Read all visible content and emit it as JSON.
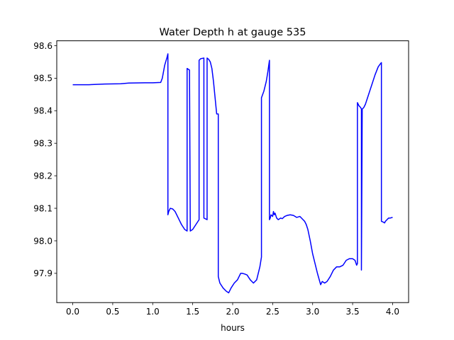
{
  "chart_data": {
    "type": "line",
    "title": "Water Depth h at gauge 535",
    "xlabel": "hours",
    "ylabel": "",
    "xlim": [
      -0.2,
      4.2
    ],
    "ylim": [
      97.81,
      98.615
    ],
    "xticks": [
      0.0,
      0.5,
      1.0,
      1.5,
      2.0,
      2.5,
      3.0,
      3.5,
      4.0
    ],
    "xtick_labels": [
      "0.0",
      "0.5",
      "1.0",
      "1.5",
      "2.0",
      "2.5",
      "3.0",
      "3.5",
      "4.0"
    ],
    "yticks": [
      97.9,
      98.0,
      98.1,
      98.2,
      98.3,
      98.4,
      98.5,
      98.6
    ],
    "ytick_labels": [
      "97.9",
      "98.0",
      "98.1",
      "98.2",
      "98.3",
      "98.4",
      "98.5",
      "98.6"
    ],
    "grid": false,
    "series": [
      {
        "color": "#0000ff",
        "x": [
          0.0,
          0.2,
          0.4,
          0.6,
          0.7,
          0.9,
          1.0,
          1.1,
          1.12,
          1.15,
          1.18,
          1.19,
          1.19,
          1.2,
          1.22,
          1.25,
          1.28,
          1.32,
          1.36,
          1.4,
          1.43,
          1.43,
          1.46,
          1.46,
          1.47,
          1.5,
          1.54,
          1.58,
          1.58,
          1.6,
          1.64,
          1.64,
          1.68,
          1.68,
          1.7,
          1.72,
          1.74,
          1.76,
          1.78,
          1.8,
          1.82,
          1.82,
          1.84,
          1.88,
          1.92,
          1.95,
          1.98,
          2.02,
          2.06,
          2.1,
          2.12,
          2.15,
          2.18,
          2.22,
          2.26,
          2.3,
          2.34,
          2.36,
          2.36,
          2.39,
          2.42,
          2.44,
          2.46,
          2.46,
          2.47,
          2.48,
          2.5,
          2.51,
          2.52,
          2.53,
          2.55,
          2.57,
          2.6,
          2.62,
          2.65,
          2.68,
          2.72,
          2.76,
          2.8,
          2.84,
          2.88,
          2.9,
          2.92,
          2.94,
          2.97,
          3.0,
          3.03,
          3.06,
          3.1,
          3.12,
          3.15,
          3.18,
          3.22,
          3.26,
          3.3,
          3.34,
          3.38,
          3.42,
          3.46,
          3.5,
          3.53,
          3.55,
          3.56,
          3.56,
          3.58,
          3.6,
          3.61,
          3.61,
          3.62,
          3.64,
          3.66,
          3.7,
          3.74,
          3.78,
          3.82,
          3.85,
          3.86,
          3.86,
          3.88,
          3.9,
          3.91,
          3.93,
          3.95,
          3.97,
          4.0
        ],
        "y": [
          98.48,
          98.48,
          98.482,
          98.483,
          98.485,
          98.486,
          98.486,
          98.487,
          98.5,
          98.54,
          98.565,
          98.575,
          98.08,
          98.09,
          98.1,
          98.098,
          98.09,
          98.07,
          98.05,
          98.035,
          98.03,
          98.53,
          98.525,
          98.525,
          98.03,
          98.035,
          98.05,
          98.065,
          98.555,
          98.56,
          98.562,
          98.07,
          98.065,
          98.562,
          98.558,
          98.55,
          98.53,
          98.49,
          98.44,
          98.39,
          98.39,
          97.89,
          97.87,
          97.855,
          97.845,
          97.84,
          97.855,
          97.87,
          97.88,
          97.9,
          97.9,
          97.898,
          97.895,
          97.88,
          97.87,
          97.88,
          97.92,
          97.95,
          98.44,
          98.46,
          98.49,
          98.52,
          98.555,
          98.065,
          98.07,
          98.08,
          98.075,
          98.09,
          98.08,
          98.085,
          98.07,
          98.065,
          98.07,
          98.068,
          98.075,
          98.078,
          98.08,
          98.078,
          98.072,
          98.075,
          98.065,
          98.06,
          98.05,
          98.035,
          98.0,
          97.96,
          97.93,
          97.9,
          97.865,
          97.875,
          97.87,
          97.875,
          97.89,
          97.91,
          97.92,
          97.92,
          97.925,
          97.94,
          97.945,
          97.945,
          97.94,
          97.925,
          97.93,
          98.425,
          98.415,
          98.41,
          98.405,
          97.91,
          98.405,
          98.41,
          98.42,
          98.45,
          98.48,
          98.51,
          98.535,
          98.545,
          98.548,
          98.06,
          98.058,
          98.055,
          98.06,
          98.065,
          98.07,
          98.07,
          98.072
        ]
      }
    ]
  }
}
